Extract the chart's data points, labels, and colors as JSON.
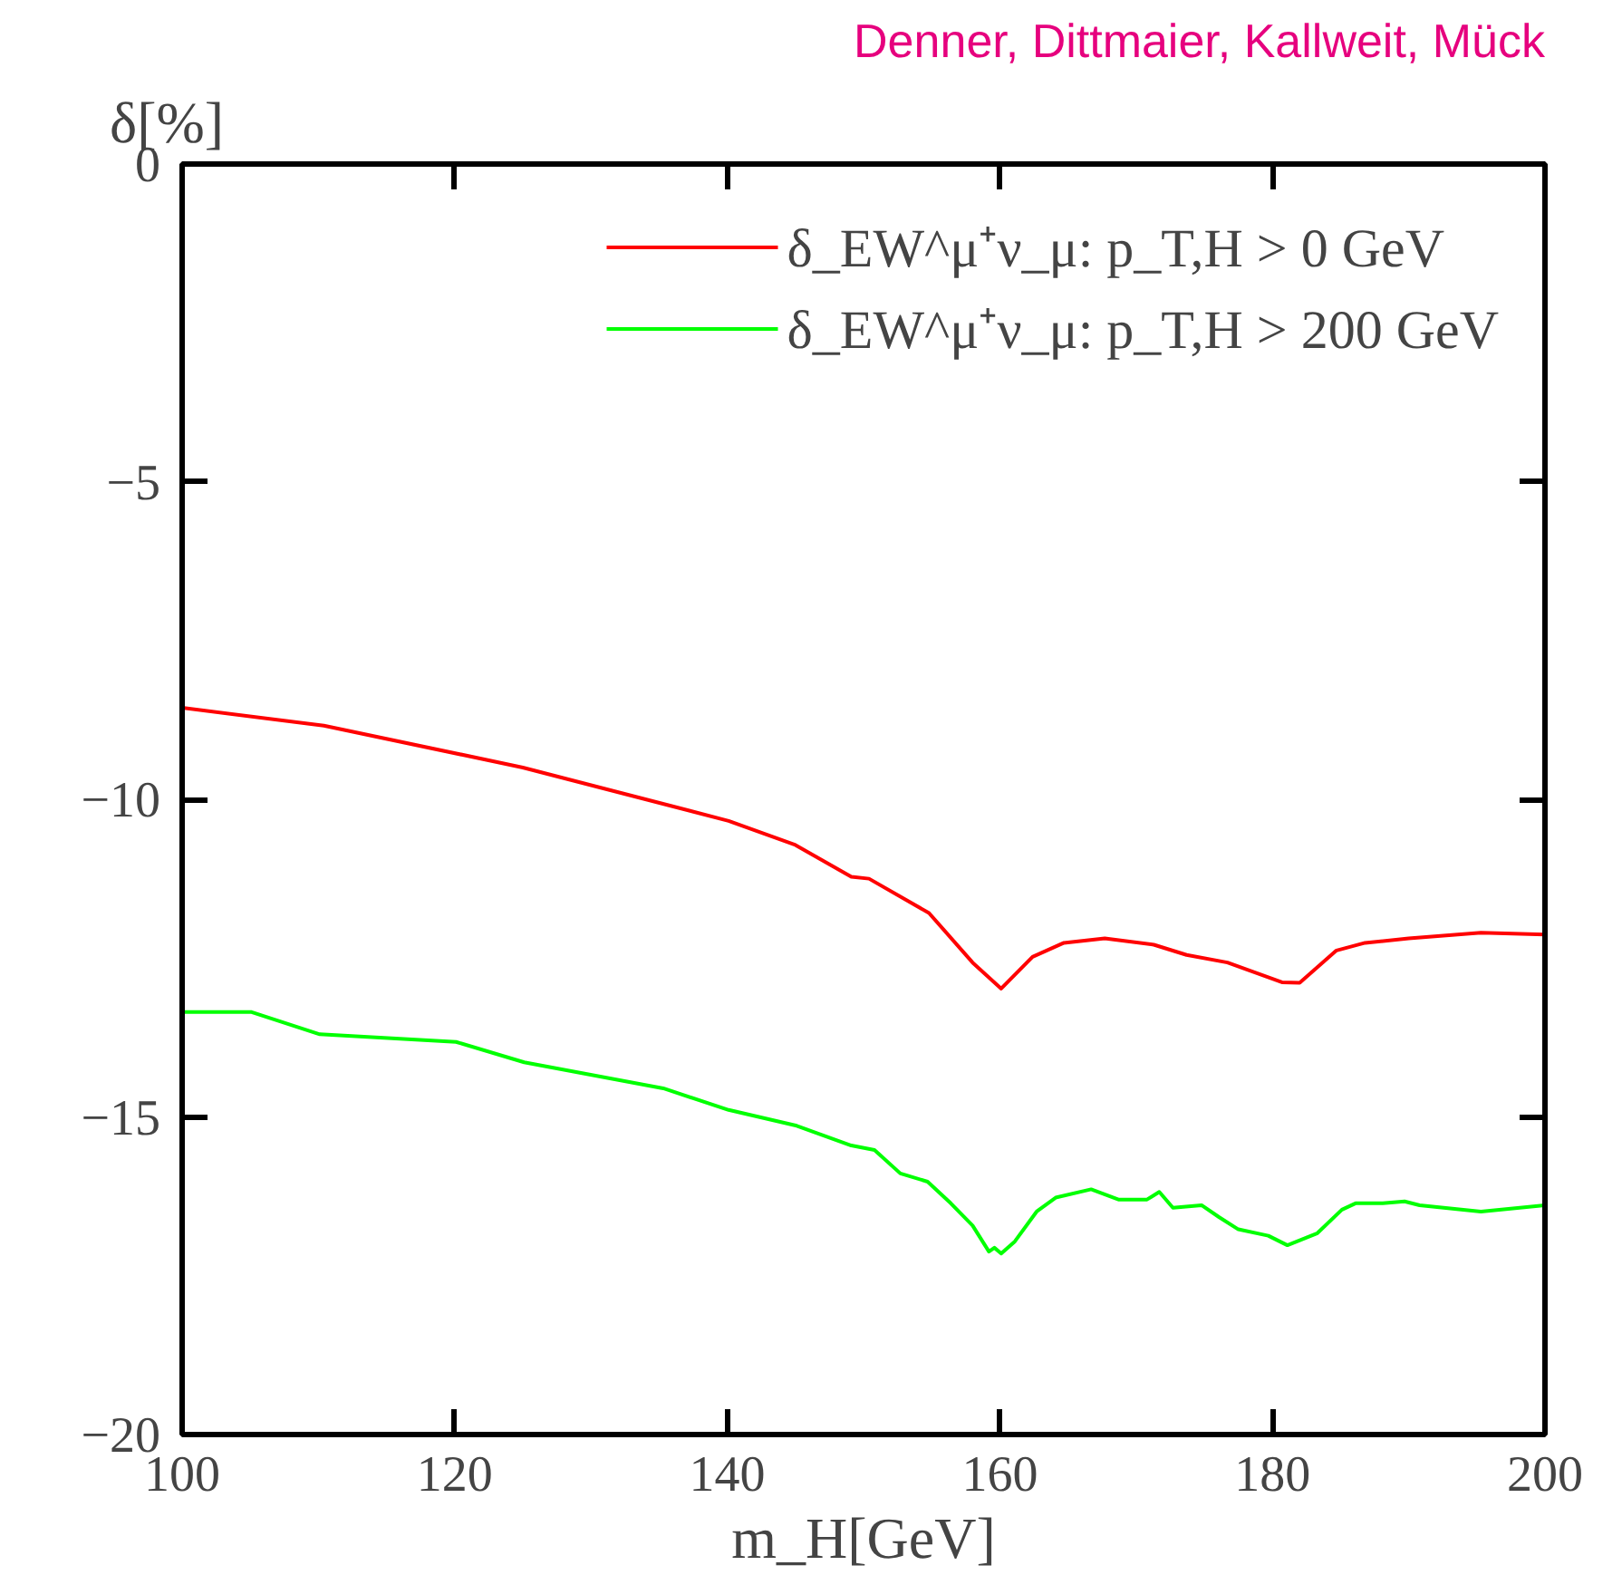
{
  "chart_data": {
    "type": "line",
    "xlabel": "m_H[GeV]",
    "ylabel": "δ[%]",
    "annotations": [
      "Denner, Dittmaier, Kallweit, Mück"
    ],
    "xlim": [
      100,
      200
    ],
    "ylim": [
      -20,
      0
    ],
    "xticks": [
      100,
      120,
      140,
      160,
      180,
      200
    ],
    "yticks": [
      0,
      {
        "value": -5,
        "label": "−5"
      },
      {
        "value": -10,
        "label": "−10"
      },
      {
        "value": -15,
        "label": "−15"
      },
      {
        "value": -20,
        "label": "−20"
      }
    ],
    "grid": false,
    "legend": "top right",
    "marker": "none",
    "line_style": "solid",
    "series": [
      {
        "name": "δ_EW^μ⁺ν_μ: p_T,H > 0 GeV",
        "color": "#ff0000",
        "x": [
          100,
          110.4,
          125,
          140.1,
          145,
          149.1,
          150.4,
          154.8,
          158,
          160.1,
          162.4,
          164.7,
          167.7,
          171.3,
          173.7,
          176.7,
          178.4,
          180.7,
          182,
          184.7,
          186.8,
          190,
          195.3,
          200
        ],
        "values": [
          -8.56,
          -8.84,
          -9.5,
          -10.34,
          -10.72,
          -11.22,
          -11.25,
          -11.79,
          -12.57,
          -12.98,
          -12.48,
          -12.26,
          -12.19,
          -12.29,
          -12.45,
          -12.57,
          -12.7,
          -12.88,
          -12.89,
          -12.38,
          -12.26,
          -12.19,
          -12.1,
          -12.13
        ]
      },
      {
        "name": "δ_EW^μ⁺ν_μ: p_T,H > 200 GeV",
        "color": "#00ff00",
        "x": [
          100,
          105.1,
          110.1,
          120.1,
          125.1,
          135.3,
          140.1,
          145.1,
          149.1,
          150.8,
          152.7,
          154.7,
          156.4,
          158,
          159.2,
          159.6,
          160.1,
          161.1,
          162.7,
          164.1,
          166.7,
          168.7,
          170.8,
          171.7,
          172.7,
          174.8,
          176.1,
          177.5,
          179.7,
          181.1,
          183.3,
          185.1,
          186.1,
          188.1,
          189.7,
          190.8,
          195.3,
          200
        ],
        "values": [
          -13.35,
          -13.35,
          -13.7,
          -13.82,
          -14.14,
          -14.55,
          -14.89,
          -15.14,
          -15.45,
          -15.52,
          -15.89,
          -16.02,
          -16.36,
          -16.71,
          -17.12,
          -17.06,
          -17.15,
          -16.96,
          -16.49,
          -16.27,
          -16.14,
          -16.3,
          -16.3,
          -16.18,
          -16.43,
          -16.39,
          -16.58,
          -16.77,
          -16.87,
          -17.02,
          -16.83,
          -16.46,
          -16.36,
          -16.36,
          -16.33,
          -16.39,
          -16.49,
          -16.39
        ]
      }
    ]
  }
}
